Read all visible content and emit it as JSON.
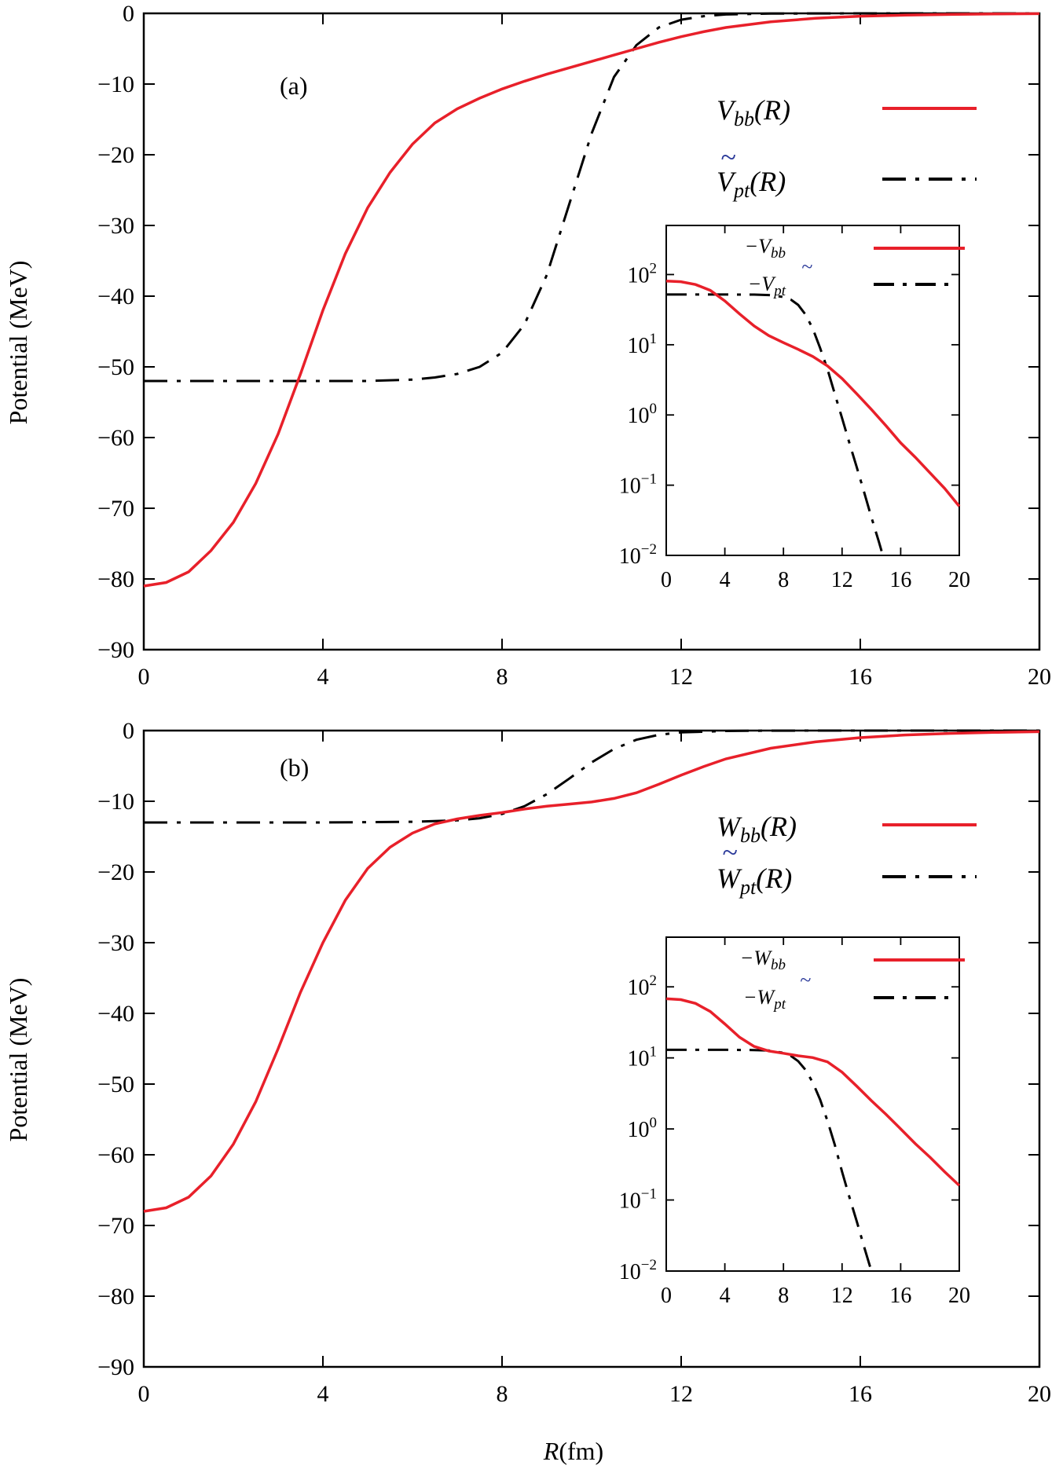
{
  "chart_data": [
    {
      "panel": "(a)",
      "type": "line",
      "xlabel": "",
      "ylabel": "Potential (MeV)",
      "xlim": [
        0,
        20
      ],
      "ylim": [
        -90,
        0
      ],
      "xticks": [
        "0",
        "4",
        "8",
        "12",
        "16",
        "20"
      ],
      "yticks": [
        "0",
        "−10",
        "−20",
        "−30",
        "−40",
        "−50",
        "−60",
        "−70",
        "−80",
        "−90"
      ],
      "legend_position": "right",
      "series": [
        {
          "name": "V_bb(R)",
          "style": "solid",
          "color": "#e8202a",
          "x": [
            0,
            0.5,
            1,
            1.5,
            2,
            2.5,
            3,
            3.5,
            4,
            4.5,
            5,
            5.5,
            6,
            6.5,
            7,
            7.5,
            8,
            8.5,
            9,
            9.5,
            10,
            10.5,
            11,
            11.5,
            12,
            12.5,
            13,
            14,
            15,
            16,
            17,
            18,
            19,
            20
          ],
          "y": [
            -81,
            -80.5,
            -79,
            -76,
            -72,
            -66.5,
            -59.5,
            -51,
            -42,
            -34,
            -27.5,
            -22.5,
            -18.5,
            -15.5,
            -13.5,
            -12,
            -10.7,
            -9.6,
            -8.6,
            -7.7,
            -6.8,
            -5.9,
            -5,
            -4.1,
            -3.3,
            -2.6,
            -2,
            -1.2,
            -0.7,
            -0.4,
            -0.25,
            -0.15,
            -0.09,
            -0.05
          ]
        },
        {
          "name": "Ṽ_pt(R)",
          "style": "dash-dot",
          "color": "#000000",
          "x": [
            0,
            2,
            4,
            5,
            6,
            6.5,
            7,
            7.5,
            8,
            8.5,
            9,
            9.5,
            10,
            10.5,
            11,
            11.5,
            12,
            12.5,
            13,
            14,
            16,
            20
          ],
          "y": [
            -52,
            -52,
            -52,
            -52,
            -51.8,
            -51.5,
            -51,
            -50,
            -48,
            -44,
            -37,
            -27,
            -17,
            -9,
            -4.5,
            -2,
            -0.9,
            -0.4,
            -0.15,
            -0.03,
            0,
            0
          ]
        }
      ],
      "inset": {
        "type": "line",
        "yscale": "log",
        "xlim": [
          0,
          20
        ],
        "ylim": [
          0.01,
          500
        ],
        "xticks": [
          "0",
          "4",
          "8",
          "12",
          "16",
          "20"
        ],
        "ytick_values": [
          2,
          1,
          0,
          -1,
          -2
        ],
        "ytick_base": "10",
        "ytick_exponents": [
          "2",
          "1",
          "0",
          "−1",
          "−2"
        ],
        "series": [
          {
            "name": "−V_bb",
            "style": "solid",
            "color": "#e8202a",
            "x": [
              0,
              1,
              2,
              3,
              4,
              5,
              6,
              7,
              8,
              9,
              10,
              11,
              12,
              13,
              14,
              15,
              16,
              17,
              18,
              19,
              20
            ],
            "y": [
              81,
              79,
              72,
              59.5,
              42,
              27.5,
              18.5,
              13.5,
              10.7,
              8.6,
              6.8,
              5,
              3.3,
              2,
              1.2,
              0.7,
              0.4,
              0.25,
              0.15,
              0.09,
              0.05
            ]
          },
          {
            "name": "−Ṽ_pt",
            "style": "dash-dot",
            "color": "#000000",
            "x": [
              0,
              2,
              4,
              6,
              7,
              8,
              8.5,
              9,
              9.5,
              10,
              10.5,
              11,
              11.5,
              12,
              12.5,
              13,
              13.5,
              14,
              14.5,
              15
            ],
            "y": [
              52,
              52,
              52,
              51.8,
              51,
              48,
              44,
              37,
              27,
              17,
              9,
              4.5,
              2,
              0.9,
              0.4,
              0.18,
              0.08,
              0.035,
              0.016,
              0.007
            ]
          }
        ]
      }
    },
    {
      "panel": "(b)",
      "type": "line",
      "xlabel": "R(fm)",
      "ylabel": "Potential (MeV)",
      "xlim": [
        0,
        20
      ],
      "ylim": [
        -90,
        0
      ],
      "xticks": [
        "0",
        "4",
        "8",
        "12",
        "16",
        "20"
      ],
      "yticks": [
        "0",
        "−10",
        "−20",
        "−30",
        "−40",
        "−50",
        "−60",
        "−70",
        "−80",
        "−90"
      ],
      "legend_position": "right",
      "series": [
        {
          "name": "W_bb(R)",
          "style": "solid",
          "color": "#e8202a",
          "x": [
            0,
            0.5,
            1,
            1.5,
            2,
            2.5,
            3,
            3.5,
            4,
            4.5,
            5,
            5.5,
            6,
            6.5,
            7,
            7.5,
            8,
            8.5,
            9,
            9.5,
            10,
            10.5,
            11,
            11.5,
            12,
            12.5,
            13,
            14,
            15,
            16,
            17,
            18,
            19,
            20
          ],
          "y": [
            -68,
            -67.5,
            -66,
            -63,
            -58.5,
            -52.5,
            -45,
            -37,
            -30,
            -24,
            -19.5,
            -16.5,
            -14.5,
            -13.2,
            -12.5,
            -12,
            -11.6,
            -11.1,
            -10.7,
            -10.4,
            -10.1,
            -9.6,
            -8.8,
            -7.6,
            -6.3,
            -5.1,
            -4,
            -2.5,
            -1.6,
            -1,
            -0.62,
            -0.4,
            -0.25,
            -0.16
          ]
        },
        {
          "name": "W̃_pt(R)",
          "style": "dash-dot",
          "color": "#000000",
          "x": [
            0,
            2,
            4,
            6,
            7,
            7.5,
            8,
            8.5,
            9,
            9.5,
            10,
            10.5,
            11,
            11.5,
            12,
            13,
            14,
            16,
            20
          ],
          "y": [
            -13,
            -13,
            -13,
            -12.9,
            -12.7,
            -12.4,
            -11.8,
            -10.7,
            -9,
            -6.8,
            -4.5,
            -2.6,
            -1.3,
            -0.6,
            -0.25,
            -0.05,
            -0.01,
            0,
            0
          ]
        }
      ],
      "inset": {
        "type": "line",
        "yscale": "log",
        "xlim": [
          0,
          20
        ],
        "ylim": [
          0.01,
          500
        ],
        "xticks": [
          "0",
          "4",
          "8",
          "12",
          "16",
          "20"
        ],
        "ytick_values": [
          2,
          1,
          0,
          -1,
          -2
        ],
        "ytick_base": "10",
        "ytick_exponents": [
          "2",
          "1",
          "0",
          "−1",
          "−2"
        ],
        "series": [
          {
            "name": "−W_bb",
            "style": "solid",
            "color": "#e8202a",
            "x": [
              0,
              1,
              2,
              3,
              4,
              5,
              6,
              7,
              8,
              9,
              10,
              11,
              12,
              13,
              14,
              15,
              16,
              17,
              18,
              19,
              20
            ],
            "y": [
              68,
              66,
              58.5,
              45,
              30,
              19.5,
              14.5,
              12.5,
              11.6,
              10.7,
              10.1,
              8.8,
              6.3,
              4,
              2.5,
              1.6,
              1,
              0.62,
              0.4,
              0.25,
              0.16
            ]
          },
          {
            "name": "−W̃_pt",
            "style": "dash-dot",
            "color": "#000000",
            "x": [
              0,
              2,
              4,
              6,
              7,
              8,
              8.5,
              9,
              9.5,
              10,
              10.5,
              11,
              11.5,
              12,
              12.5,
              13,
              13.5,
              14,
              14.5
            ],
            "y": [
              13,
              13,
              13,
              12.9,
              12.7,
              11.8,
              10.7,
              9,
              6.8,
              4.5,
              2.6,
              1.3,
              0.6,
              0.25,
              0.11,
              0.05,
              0.022,
              0.01,
              0.005
            ]
          }
        ]
      }
    }
  ],
  "legend_text": {
    "a": {
      "s1_main": "V",
      "s1_sub": "bb",
      "s1_arg": "(R)",
      "s2_main": "V",
      "s2_sub": "pt",
      "s2_arg": "(R)",
      "tilde": "~"
    },
    "b": {
      "s1_main": "W",
      "s1_sub": "bb",
      "s1_arg": "(R)",
      "s2_main": "W",
      "s2_sub": "pt",
      "s2_arg": "(R)",
      "tilde": "~"
    }
  },
  "inset_legend_text": {
    "a": {
      "minus": "−",
      "s1_main": "V",
      "s1_sub": "bb",
      "s2_main": "V",
      "s2_sub": "pt",
      "tilde": "~"
    },
    "b": {
      "minus": "−",
      "s1_main": "W",
      "s1_sub": "bb",
      "s2_main": "W",
      "s2_sub": "pt",
      "tilde": "~"
    }
  },
  "xlabel_parts": {
    "var": "R",
    "unit": "(fm)"
  },
  "colors": {
    "red": "#e8202a",
    "black": "#000000",
    "tilde_blue": "#2b3a9a"
  }
}
